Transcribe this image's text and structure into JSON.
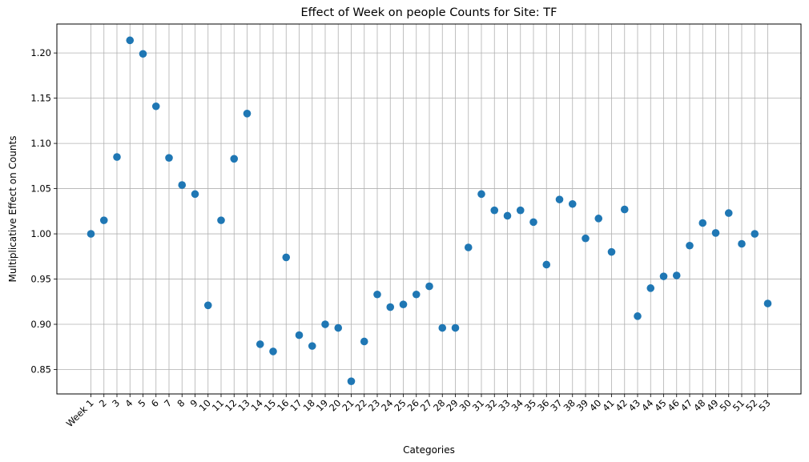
{
  "chart_data": {
    "type": "scatter",
    "title": "Effect of Week on people Counts for Site: TF",
    "xlabel": "Categories",
    "ylabel": "Multiplicative Effect on Counts",
    "categories": [
      "Week 1",
      "2",
      "3",
      "4",
      "5",
      "6",
      "7",
      "8",
      "9",
      "10",
      "11",
      "12",
      "13",
      "14",
      "15",
      "16",
      "17",
      "18",
      "19",
      "20",
      "21",
      "22",
      "23",
      "24",
      "25",
      "26",
      "27",
      "28",
      "29",
      "30",
      "31",
      "32",
      "33",
      "34",
      "35",
      "36",
      "37",
      "38",
      "39",
      "40",
      "41",
      "42",
      "43",
      "44",
      "45",
      "46",
      "47",
      "48",
      "49",
      "50",
      "51",
      "52",
      "53"
    ],
    "series": [
      {
        "values": [
          1.0,
          1.015,
          1.085,
          1.214,
          1.199,
          1.141,
          1.084,
          1.054,
          1.044,
          0.921,
          1.015,
          1.083,
          1.133,
          0.878,
          0.87,
          0.974,
          0.888,
          0.876,
          0.9,
          0.896,
          0.837,
          0.881,
          0.933,
          0.919,
          0.922,
          0.933,
          0.942,
          0.896,
          0.896,
          0.985,
          1.044,
          1.026,
          1.02,
          1.026,
          1.013,
          0.966,
          1.038,
          1.033,
          0.995,
          1.017,
          0.98,
          1.027,
          0.909,
          0.94,
          0.953,
          0.954,
          0.987,
          1.012,
          1.001,
          1.023,
          0.989,
          1.0,
          0.923
        ]
      }
    ],
    "yticks": [
      "0.85",
      "0.90",
      "0.95",
      "1.00",
      "1.05",
      "1.10",
      "1.15",
      "1.20"
    ],
    "ylim": [
      0.823,
      1.232
    ],
    "grid": true,
    "marker_color": "#1f77b4"
  }
}
